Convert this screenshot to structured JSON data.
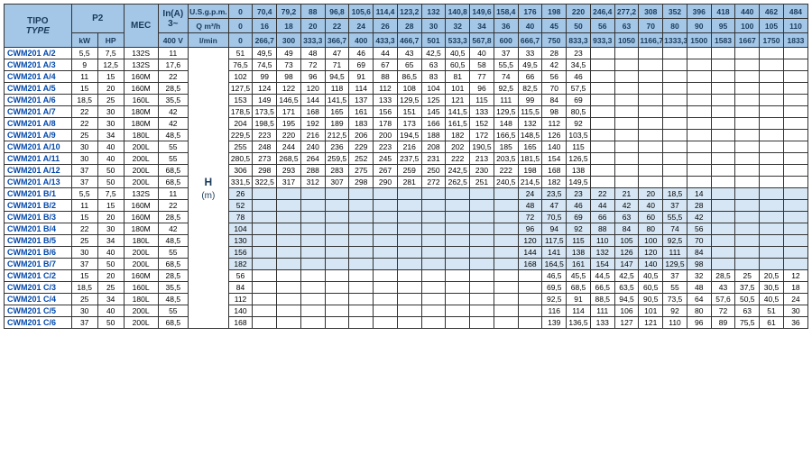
{
  "header": {
    "tipo": "TIPO",
    "type": "TYPE",
    "p2": "P2",
    "kw": "kW",
    "hp": "HP",
    "mec": "MEC",
    "inA": "In(A)",
    "ph": "3~",
    "volt": "400 V",
    "usgpm": "U.S.g.p.m.",
    "qm3h": "Q m³/h",
    "lmin": "l/min",
    "H": "H",
    "m": "(m)",
    "row1": [
      "0",
      "70,4",
      "79,2",
      "88",
      "96,8",
      "105,6",
      "114,4",
      "123,2",
      "132",
      "140,8",
      "149,6",
      "158,4",
      "176",
      "198",
      "220",
      "246,4",
      "277,2",
      "308",
      "352",
      "396",
      "418",
      "440",
      "462",
      "484"
    ],
    "row2": [
      "0",
      "16",
      "18",
      "20",
      "22",
      "24",
      "26",
      "28",
      "30",
      "32",
      "34",
      "36",
      "40",
      "45",
      "50",
      "56",
      "63",
      "70",
      "80",
      "90",
      "95",
      "100",
      "105",
      "110"
    ],
    "row3": [
      "0",
      "266,7",
      "300",
      "333,3",
      "366,7",
      "400",
      "433,3",
      "466,7",
      "501",
      "533,3",
      "567,8",
      "600",
      "666,7",
      "750",
      "833,3",
      "933,3",
      "1050",
      "1166,7",
      "1333,3",
      "1500",
      "1583",
      "1667",
      "1750",
      "1833"
    ]
  },
  "colors": {
    "headerBg": "#a4c7e8",
    "bShade": "#d6e6f4",
    "typeColor": "#0047ab"
  },
  "rows": [
    {
      "t": "CWM201 A/2",
      "kw": "5,5",
      "hp": "7,5",
      "mec": "132S",
      "in": "11",
      "d": [
        "51",
        "49,5",
        "49",
        "48",
        "47",
        "46",
        "44",
        "43",
        "42,5",
        "40,5",
        "40",
        "37",
        "33",
        "28",
        "23",
        "",
        "",
        "",
        "",
        "",
        "",
        "",
        "",
        ""
      ],
      "s": 0,
      "H": ""
    },
    {
      "t": "CWM201 A/3",
      "kw": "9",
      "hp": "12,5",
      "mec": "132S",
      "in": "17,6",
      "d": [
        "76,5",
        "74,5",
        "73",
        "72",
        "71",
        "69",
        "67",
        "65",
        "63",
        "60,5",
        "58",
        "55,5",
        "49,5",
        "42",
        "34,5",
        "",
        "",
        "",
        "",
        "",
        "",
        "",
        "",
        ""
      ],
      "s": 0,
      "H": ""
    },
    {
      "t": "CWM201 A/4",
      "kw": "11",
      "hp": "15",
      "mec": "160M",
      "in": "22",
      "d": [
        "102",
        "99",
        "98",
        "96",
        "94,5",
        "91",
        "88",
        "86,5",
        "83",
        "81",
        "77",
        "74",
        "66",
        "56",
        "46",
        "",
        "",
        "",
        "",
        "",
        "",
        "",
        "",
        ""
      ],
      "s": 0,
      "H": ""
    },
    {
      "t": "CWM201 A/5",
      "kw": "15",
      "hp": "20",
      "mec": "160M",
      "in": "28,5",
      "d": [
        "127,5",
        "124",
        "122",
        "120",
        "118",
        "114",
        "112",
        "108",
        "104",
        "101",
        "96",
        "92,5",
        "82,5",
        "70",
        "57,5",
        "",
        "",
        "",
        "",
        "",
        "",
        "",
        "",
        ""
      ],
      "s": 0,
      "H": ""
    },
    {
      "t": "CWM201 A/6",
      "kw": "18,5",
      "hp": "25",
      "mec": "160L",
      "in": "35,5",
      "d": [
        "153",
        "149",
        "146,5",
        "144",
        "141,5",
        "137",
        "133",
        "129,5",
        "125",
        "121",
        "115",
        "111",
        "99",
        "84",
        "69",
        "",
        "",
        "",
        "",
        "",
        "",
        "",
        "",
        ""
      ],
      "s": 0,
      "H": ""
    },
    {
      "t": "CWM201 A/7",
      "kw": "22",
      "hp": "30",
      "mec": "180M",
      "in": "42",
      "d": [
        "178,5",
        "173,5",
        "171",
        "168",
        "165",
        "161",
        "156",
        "151",
        "145",
        "141,5",
        "133",
        "129,5",
        "115,5",
        "98",
        "80,5",
        "",
        "",
        "",
        "",
        "",
        "",
        "",
        "",
        ""
      ],
      "s": 0,
      "H": ""
    },
    {
      "t": "CWM201 A/8",
      "kw": "22",
      "hp": "30",
      "mec": "180M",
      "in": "42",
      "d": [
        "204",
        "198,5",
        "195",
        "192",
        "189",
        "183",
        "178",
        "173",
        "166",
        "161,5",
        "152",
        "148",
        "132",
        "112",
        "92",
        "",
        "",
        "",
        "",
        "",
        "",
        "",
        "",
        ""
      ],
      "s": 0,
      "H": ""
    },
    {
      "t": "CWM201 A/9",
      "kw": "25",
      "hp": "34",
      "mec": "180L",
      "in": "48,5",
      "d": [
        "229,5",
        "223",
        "220",
        "216",
        "212,5",
        "206",
        "200",
        "194,5",
        "188",
        "182",
        "172",
        "166,5",
        "148,5",
        "126",
        "103,5",
        "",
        "",
        "",
        "",
        "",
        "",
        "",
        "",
        ""
      ],
      "s": 0,
      "H": ""
    },
    {
      "t": "CWM201 A/10",
      "kw": "30",
      "hp": "40",
      "mec": "200L",
      "in": "55",
      "d": [
        "255",
        "248",
        "244",
        "240",
        "236",
        "229",
        "223",
        "216",
        "208",
        "202",
        "190,5",
        "185",
        "165",
        "140",
        "115",
        "",
        "",
        "",
        "",
        "",
        "",
        "",
        "",
        ""
      ],
      "s": 0,
      "H": ""
    },
    {
      "t": "CWM201 A/11",
      "kw": "30",
      "hp": "40",
      "mec": "200L",
      "in": "55",
      "d": [
        "280,5",
        "273",
        "268,5",
        "264",
        "259,5",
        "252",
        "245",
        "237,5",
        "231",
        "222",
        "213",
        "203,5",
        "181,5",
        "154",
        "126,5",
        "",
        "",
        "",
        "",
        "",
        "",
        "",
        "",
        ""
      ],
      "s": 0,
      "H": ""
    },
    {
      "t": "CWM201 A/12",
      "kw": "37",
      "hp": "50",
      "mec": "200L",
      "in": "68,5",
      "d": [
        "306",
        "298",
        "293",
        "288",
        "283",
        "275",
        "267",
        "259",
        "250",
        "242,5",
        "230",
        "222",
        "198",
        "168",
        "138",
        "",
        "",
        "",
        "",
        "",
        "",
        "",
        "",
        ""
      ],
      "s": 0,
      "H": ""
    },
    {
      "t": "CWM201 A/13",
      "kw": "37",
      "hp": "50",
      "mec": "200L",
      "in": "68,5",
      "d": [
        "331,5",
        "322,5",
        "317",
        "312",
        "307",
        "298",
        "290",
        "281",
        "272",
        "262,5",
        "251",
        "240,5",
        "214,5",
        "182",
        "149,5",
        "",
        "",
        "",
        "",
        "",
        "",
        "",
        "",
        ""
      ],
      "s": 0,
      "H": ""
    },
    {
      "t": "CWM201 B/1",
      "kw": "5,5",
      "hp": "7,5",
      "mec": "132S",
      "in": "11",
      "d": [
        "26",
        "",
        "",
        "",
        "",
        "",
        "",
        "",
        "",
        "",
        "",
        "",
        "24",
        "23,5",
        "23",
        "22",
        "21",
        "20",
        "18,5",
        "14",
        "",
        "",
        "",
        ""
      ],
      "s": 1,
      "H": "H"
    },
    {
      "t": "CWM201 B/2",
      "kw": "11",
      "hp": "15",
      "mec": "160M",
      "in": "22",
      "d": [
        "52",
        "",
        "",
        "",
        "",
        "",
        "",
        "",
        "",
        "",
        "",
        "",
        "48",
        "47",
        "46",
        "44",
        "42",
        "40",
        "37",
        "28",
        "",
        "",
        "",
        ""
      ],
      "s": 1,
      "H": "(m)"
    },
    {
      "t": "CWM201 B/3",
      "kw": "15",
      "hp": "20",
      "mec": "160M",
      "in": "28,5",
      "d": [
        "78",
        "",
        "",
        "",
        "",
        "",
        "",
        "",
        "",
        "",
        "",
        "",
        "72",
        "70,5",
        "69",
        "66",
        "63",
        "60",
        "55,5",
        "42",
        "",
        "",
        "",
        ""
      ],
      "s": 1,
      "H": ""
    },
    {
      "t": "CWM201 B/4",
      "kw": "22",
      "hp": "30",
      "mec": "180M",
      "in": "42",
      "d": [
        "104",
        "",
        "",
        "",
        "",
        "",
        "",
        "",
        "",
        "",
        "",
        "",
        "96",
        "94",
        "92",
        "88",
        "84",
        "80",
        "74",
        "56",
        "",
        "",
        "",
        ""
      ],
      "s": 1,
      "H": ""
    },
    {
      "t": "CWM201 B/5",
      "kw": "25",
      "hp": "34",
      "mec": "180L",
      "in": "48,5",
      "d": [
        "130",
        "",
        "",
        "",
        "",
        "",
        "",
        "",
        "",
        "",
        "",
        "",
        "120",
        "117,5",
        "115",
        "110",
        "105",
        "100",
        "92,5",
        "70",
        "",
        "",
        "",
        ""
      ],
      "s": 1,
      "H": ""
    },
    {
      "t": "CWM201 B/6",
      "kw": "30",
      "hp": "40",
      "mec": "200L",
      "in": "55",
      "d": [
        "156",
        "",
        "",
        "",
        "",
        "",
        "",
        "",
        "",
        "",
        "",
        "",
        "144",
        "141",
        "138",
        "132",
        "126",
        "120",
        "111",
        "84",
        "",
        "",
        "",
        ""
      ],
      "s": 1,
      "H": ""
    },
    {
      "t": "CWM201 B/7",
      "kw": "37",
      "hp": "50",
      "mec": "200L",
      "in": "68,5",
      "d": [
        "182",
        "",
        "",
        "",
        "",
        "",
        "",
        "",
        "",
        "",
        "",
        "",
        "168",
        "164,5",
        "161",
        "154",
        "147",
        "140",
        "129,5",
        "98",
        "",
        "",
        "",
        ""
      ],
      "s": 1,
      "H": ""
    },
    {
      "t": "CWM201 C/2",
      "kw": "15",
      "hp": "20",
      "mec": "160M",
      "in": "28,5",
      "d": [
        "56",
        "",
        "",
        "",
        "",
        "",
        "",
        "",
        "",
        "",
        "",
        "",
        "",
        "46,5",
        "45,5",
        "44,5",
        "42,5",
        "40,5",
        "37",
        "32",
        "28,5",
        "25",
        "20,5",
        "12"
      ],
      "s": 0,
      "H": ""
    },
    {
      "t": "CWM201 C/3",
      "kw": "18,5",
      "hp": "25",
      "mec": "160L",
      "in": "35,5",
      "d": [
        "84",
        "",
        "",
        "",
        "",
        "",
        "",
        "",
        "",
        "",
        "",
        "",
        "",
        "69,5",
        "68,5",
        "66,5",
        "63,5",
        "60,5",
        "55",
        "48",
        "43",
        "37,5",
        "30,5",
        "18"
      ],
      "s": 0,
      "H": ""
    },
    {
      "t": "CWM201 C/4",
      "kw": "25",
      "hp": "34",
      "mec": "180L",
      "in": "48,5",
      "d": [
        "112",
        "",
        "",
        "",
        "",
        "",
        "",
        "",
        "",
        "",
        "",
        "",
        "",
        "92,5",
        "91",
        "88,5",
        "94,5",
        "90,5",
        "73,5",
        "64",
        "57,6",
        "50,5",
        "40,5",
        "24"
      ],
      "s": 0,
      "H": ""
    },
    {
      "t": "CWM201 C/5",
      "kw": "30",
      "hp": "40",
      "mec": "200L",
      "in": "55",
      "d": [
        "140",
        "",
        "",
        "",
        "",
        "",
        "",
        "",
        "",
        "",
        "",
        "",
        "",
        "116",
        "114",
        "111",
        "106",
        "101",
        "92",
        "80",
        "72",
        "63",
        "51",
        "30"
      ],
      "s": 0,
      "H": ""
    },
    {
      "t": "CWM201 C/6",
      "kw": "37",
      "hp": "50",
      "mec": "200L",
      "in": "68,5",
      "d": [
        "168",
        "",
        "",
        "",
        "",
        "",
        "",
        "",
        "",
        "",
        "",
        "",
        "",
        "139",
        "136,5",
        "133",
        "127",
        "121",
        "110",
        "96",
        "89",
        "75,5",
        "61",
        "36"
      ],
      "s": 0,
      "H": ""
    }
  ]
}
